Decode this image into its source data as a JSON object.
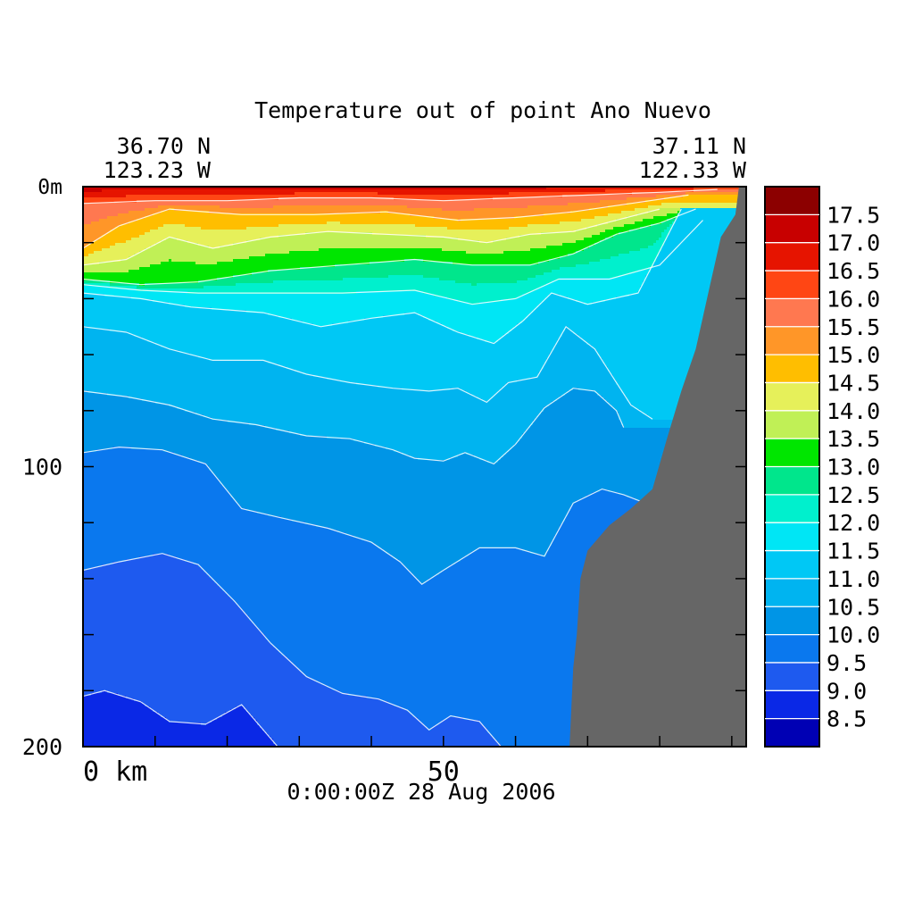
{
  "chart_data": {
    "type": "heatmap",
    "title": "Temperature out of point Ano Nuevo",
    "start_point": {
      "lat": "36.70 N",
      "lon": "123.23 W"
    },
    "end_point": {
      "lat": "37.11 N",
      "lon": "122.33 W"
    },
    "timestamp": "0:00:00Z  28 Aug 2006",
    "x_axis": {
      "label": "km",
      "range": [
        0,
        92
      ],
      "tick_labels": [
        "0 km",
        "50"
      ],
      "tick_values": [
        0,
        50
      ],
      "minor_ticks": [
        10,
        20,
        30,
        40,
        60,
        70,
        80,
        90
      ]
    },
    "y_axis": {
      "label": "m",
      "range": [
        0,
        200
      ],
      "inverted": true,
      "tick_labels": [
        "0m",
        "100",
        "200"
      ],
      "tick_values": [
        0,
        100,
        200
      ],
      "minor_ticks": [
        20,
        40,
        60,
        80,
        120,
        140,
        160,
        180
      ]
    },
    "colorbar": {
      "levels": [
        8.5,
        9.0,
        9.5,
        10.0,
        10.5,
        11.0,
        11.5,
        12.0,
        12.5,
        13.0,
        13.5,
        14.0,
        14.5,
        15.0,
        15.5,
        16.0,
        16.5,
        17.0,
        17.5
      ],
      "labels": [
        "8.5",
        "9.0",
        "9.5",
        "10.0",
        "10.5",
        "11.0",
        "11.5",
        "12.0",
        "12.5",
        "13.0",
        "13.5",
        "14.0",
        "14.5",
        "15.0",
        "15.5",
        "16.0",
        "16.5",
        "17.0",
        "17.5"
      ],
      "colors": [
        "#0000b4",
        "#0a28e6",
        "#1e5aef",
        "#0a78ee",
        "#0095e6",
        "#00b4f0",
        "#00c8f5",
        "#00e6f5",
        "#00f0cd",
        "#00e68c",
        "#00e600",
        "#c0f056",
        "#e6f05a",
        "#ffbe00",
        "#ff9628",
        "#ff7850",
        "#ff4614",
        "#e61400",
        "#c80000",
        "#8c0000"
      ]
    },
    "isotherms": [
      {
        "temp": 9.0,
        "depth": [
          [
            0,
            182
          ],
          [
            3,
            180
          ],
          [
            8,
            184
          ],
          [
            12,
            191
          ],
          [
            17,
            192
          ],
          [
            22,
            185
          ],
          [
            27,
            200
          ]
        ]
      },
      {
        "temp": 9.5,
        "depth": [
          [
            0,
            137
          ],
          [
            5,
            134
          ],
          [
            11,
            131
          ],
          [
            16,
            135
          ],
          [
            21,
            148
          ],
          [
            26,
            163
          ],
          [
            31,
            175
          ],
          [
            36,
            181
          ],
          [
            41,
            183
          ],
          [
            45,
            187
          ],
          [
            48,
            194
          ],
          [
            51,
            189
          ],
          [
            55,
            191
          ],
          [
            58,
            200
          ]
        ]
      },
      {
        "temp": 10.0,
        "depth": [
          [
            0,
            95
          ],
          [
            5,
            93
          ],
          [
            11,
            94
          ],
          [
            17,
            99
          ],
          [
            22,
            115
          ],
          [
            27,
            118
          ],
          [
            34,
            122
          ],
          [
            40,
            127
          ],
          [
            44,
            134
          ],
          [
            47,
            142
          ],
          [
            50,
            137
          ],
          [
            55,
            129
          ],
          [
            60,
            129
          ],
          [
            64,
            132
          ],
          [
            68,
            113
          ],
          [
            72,
            108
          ],
          [
            75,
            110
          ],
          [
            78,
            113
          ]
        ]
      },
      {
        "temp": 10.5,
        "depth": [
          [
            0,
            73
          ],
          [
            6,
            75
          ],
          [
            12,
            78
          ],
          [
            18,
            83
          ],
          [
            24,
            85
          ],
          [
            31,
            89
          ],
          [
            37,
            90
          ],
          [
            43,
            94
          ],
          [
            46,
            97
          ],
          [
            50,
            98
          ],
          [
            53,
            95
          ],
          [
            57,
            99
          ],
          [
            60,
            92
          ],
          [
            64,
            79
          ],
          [
            68,
            72
          ],
          [
            71,
            73
          ],
          [
            74,
            80
          ],
          [
            75,
            86
          ]
        ]
      },
      {
        "temp": 11.0,
        "depth": [
          [
            0,
            50
          ],
          [
            6,
            52
          ],
          [
            12,
            58
          ],
          [
            18,
            62
          ],
          [
            25,
            62
          ],
          [
            31,
            67
          ],
          [
            37,
            70
          ],
          [
            43,
            72
          ],
          [
            48,
            73
          ],
          [
            52,
            72
          ],
          [
            56,
            77
          ],
          [
            59,
            70
          ],
          [
            63,
            68
          ],
          [
            67,
            50
          ],
          [
            71,
            58
          ],
          [
            74,
            70
          ],
          [
            76,
            78
          ],
          [
            79,
            83
          ]
        ]
      },
      {
        "temp": 11.5,
        "depth": [
          [
            0,
            38
          ],
          [
            8,
            40
          ],
          [
            15,
            43
          ],
          [
            25,
            45
          ],
          [
            33,
            50
          ],
          [
            40,
            47
          ],
          [
            46,
            45
          ],
          [
            52,
            52
          ],
          [
            57,
            56
          ],
          [
            61,
            48
          ],
          [
            65,
            38
          ],
          [
            70,
            42
          ],
          [
            77,
            38
          ],
          [
            83,
            8
          ]
        ]
      },
      {
        "temp": 12.0,
        "depth": [
          [
            0,
            35
          ],
          [
            8,
            37
          ],
          [
            16,
            38
          ],
          [
            26,
            38
          ],
          [
            36,
            38
          ],
          [
            46,
            37
          ],
          [
            54,
            42
          ],
          [
            60,
            40
          ],
          [
            66,
            33
          ],
          [
            73,
            33
          ],
          [
            80,
            28
          ],
          [
            86,
            12
          ]
        ]
      },
      {
        "temp": 13.0,
        "depth": [
          [
            0,
            33
          ],
          [
            8,
            35
          ],
          [
            16,
            34
          ],
          [
            26,
            30
          ],
          [
            36,
            28
          ],
          [
            46,
            26
          ],
          [
            54,
            28
          ],
          [
            62,
            28
          ],
          [
            68,
            24
          ],
          [
            74,
            17
          ],
          [
            80,
            13
          ],
          [
            85,
            8
          ]
        ]
      },
      {
        "temp": 14.0,
        "depth": [
          [
            0,
            28
          ],
          [
            6,
            26
          ],
          [
            12,
            18
          ],
          [
            18,
            22
          ],
          [
            26,
            18
          ],
          [
            34,
            16
          ],
          [
            42,
            17
          ],
          [
            50,
            18
          ],
          [
            56,
            20
          ],
          [
            62,
            17
          ],
          [
            68,
            16
          ],
          [
            74,
            12
          ],
          [
            80,
            8
          ]
        ]
      },
      {
        "temp": 15.0,
        "depth": [
          [
            0,
            22
          ],
          [
            5,
            14
          ],
          [
            12,
            8
          ],
          [
            22,
            10
          ],
          [
            32,
            10
          ],
          [
            42,
            9
          ],
          [
            52,
            12
          ],
          [
            60,
            11
          ],
          [
            68,
            9
          ],
          [
            76,
            6
          ],
          [
            84,
            3
          ]
        ]
      },
      {
        "temp": 16.0,
        "depth": [
          [
            0,
            6
          ],
          [
            10,
            5
          ],
          [
            20,
            5
          ],
          [
            30,
            4
          ],
          [
            40,
            4
          ],
          [
            50,
            5
          ],
          [
            60,
            4
          ],
          [
            70,
            3
          ],
          [
            80,
            2
          ],
          [
            88,
            1
          ]
        ]
      }
    ],
    "seafloor_depth": [
      [
        67.5,
        200
      ],
      [
        68,
        172
      ],
      [
        68.5,
        160
      ],
      [
        69,
        140
      ],
      [
        70,
        130
      ],
      [
        73,
        121
      ],
      [
        76,
        115
      ],
      [
        79,
        108
      ],
      [
        81,
        90
      ],
      [
        83,
        73
      ],
      [
        85,
        58
      ],
      [
        87,
        35
      ],
      [
        88.5,
        18
      ],
      [
        90.5,
        10
      ],
      [
        91,
        0
      ],
      [
        92,
        0
      ]
    ]
  }
}
